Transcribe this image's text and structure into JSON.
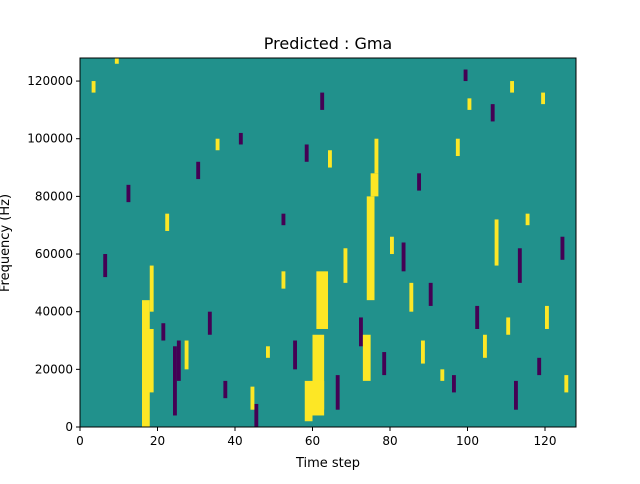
{
  "chart_data": {
    "type": "heatmap",
    "title": "Predicted : Gma",
    "xlabel": "Time step",
    "ylabel": "Frequency (Hz)",
    "xlim": [
      0,
      128
    ],
    "ylim": [
      0,
      128000
    ],
    "xticks": [
      0,
      20,
      40,
      60,
      80,
      100,
      120
    ],
    "yticks": [
      0,
      20000,
      40000,
      60000,
      80000,
      100000,
      120000
    ],
    "ytick_labels": [
      "0",
      "20000",
      "40000",
      "60000",
      "80000",
      "100000",
      "120000"
    ],
    "n_time_steps": 128,
    "n_freq_bins": 64,
    "grid": false,
    "colors": {
      "background": "#21918c",
      "high": "#fde725",
      "low": "#440154"
    },
    "note_cells_high": [
      [
        16,
        0,
        2,
        22
      ],
      [
        17,
        6,
        2,
        11
      ],
      [
        18,
        20,
        1,
        8
      ],
      [
        58,
        1,
        2,
        7
      ],
      [
        60,
        2,
        3,
        14
      ],
      [
        61,
        17,
        3,
        10
      ],
      [
        62,
        3,
        1,
        5
      ],
      [
        73,
        8,
        2,
        8
      ],
      [
        74,
        22,
        2,
        18
      ],
      [
        75,
        40,
        2,
        4
      ],
      [
        76,
        44,
        1,
        6
      ],
      [
        93,
        8,
        1,
        2
      ],
      [
        104,
        12,
        1,
        4
      ],
      [
        107,
        28,
        1,
        8
      ],
      [
        110,
        16,
        1,
        3
      ],
      [
        3,
        58,
        1,
        2
      ],
      [
        9,
        63,
        1,
        1
      ],
      [
        22,
        34,
        1,
        3
      ],
      [
        27,
        10,
        1,
        5
      ],
      [
        35,
        48,
        1,
        2
      ],
      [
        44,
        3,
        1,
        4
      ],
      [
        48,
        12,
        1,
        2
      ],
      [
        52,
        24,
        1,
        3
      ],
      [
        64,
        45,
        1,
        3
      ],
      [
        68,
        25,
        1,
        6
      ],
      [
        80,
        30,
        1,
        3
      ],
      [
        85,
        20,
        1,
        5
      ],
      [
        88,
        11,
        1,
        4
      ],
      [
        100,
        55,
        1,
        2
      ],
      [
        115,
        35,
        1,
        2
      ],
      [
        120,
        17,
        1,
        4
      ],
      [
        125,
        6,
        1,
        3
      ],
      [
        119,
        56,
        1,
        2
      ],
      [
        111,
        58,
        1,
        2
      ],
      [
        97,
        47,
        1,
        3
      ]
    ],
    "note_cells_low": [
      [
        24,
        2,
        1,
        12
      ],
      [
        25,
        8,
        1,
        7
      ],
      [
        21,
        15,
        1,
        3
      ],
      [
        33,
        16,
        1,
        4
      ],
      [
        37,
        5,
        1,
        3
      ],
      [
        45,
        0,
        1,
        4
      ],
      [
        55,
        10,
        1,
        5
      ],
      [
        66,
        3,
        1,
        6
      ],
      [
        72,
        14,
        1,
        5
      ],
      [
        78,
        9,
        1,
        4
      ],
      [
        83,
        27,
        1,
        5
      ],
      [
        90,
        21,
        1,
        4
      ],
      [
        96,
        6,
        1,
        3
      ],
      [
        102,
        17,
        1,
        4
      ],
      [
        112,
        3,
        1,
        5
      ],
      [
        113,
        25,
        1,
        6
      ],
      [
        118,
        9,
        1,
        3
      ],
      [
        124,
        29,
        1,
        4
      ],
      [
        30,
        43,
        1,
        3
      ],
      [
        41,
        49,
        1,
        2
      ],
      [
        62,
        55,
        1,
        3
      ],
      [
        87,
        41,
        1,
        3
      ],
      [
        99,
        60,
        1,
        2
      ],
      [
        106,
        53,
        1,
        3
      ],
      [
        12,
        39,
        1,
        3
      ],
      [
        6,
        26,
        1,
        4
      ],
      [
        52,
        35,
        1,
        2
      ],
      [
        58,
        46,
        1,
        3
      ]
    ]
  }
}
